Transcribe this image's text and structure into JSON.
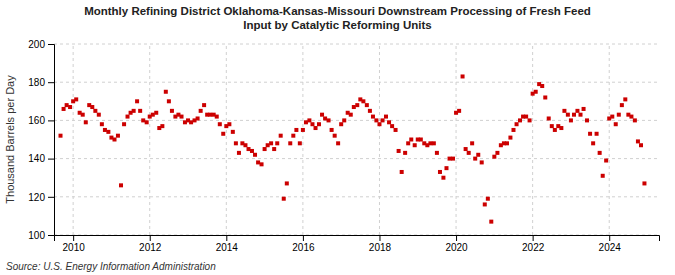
{
  "chart_data": {
    "type": "scatter",
    "title": "Monthly Refining District Oklahoma-Kansas-Missouri Downstream Processing of Fresh Feed\nInput by Catalytic Reforming Units",
    "ylabel": "Thousand Barrels per Day",
    "source": "Source: U.S. Energy Information Administration",
    "xlim": [
      2009.5,
      2025.3
    ],
    "xticks": [
      2010,
      2012,
      2014,
      2016,
      2018,
      2020,
      2022,
      2024
    ],
    "ylim": [
      100,
      200
    ],
    "yticks": [
      100,
      120,
      140,
      160,
      180,
      200
    ],
    "grid": true,
    "color": "#cc0000",
    "marker": "square",
    "x": [
      2009.67,
      2009.75,
      2009.83,
      2009.92,
      2010.0,
      2010.08,
      2010.17,
      2010.25,
      2010.33,
      2010.42,
      2010.5,
      2010.58,
      2010.67,
      2010.75,
      2010.83,
      2010.92,
      2011.0,
      2011.08,
      2011.17,
      2011.25,
      2011.33,
      2011.42,
      2011.5,
      2011.58,
      2011.67,
      2011.75,
      2011.83,
      2011.92,
      2012.0,
      2012.08,
      2012.17,
      2012.25,
      2012.33,
      2012.42,
      2012.5,
      2012.58,
      2012.67,
      2012.75,
      2012.83,
      2012.92,
      2013.0,
      2013.08,
      2013.17,
      2013.25,
      2013.33,
      2013.42,
      2013.5,
      2013.58,
      2013.67,
      2013.75,
      2013.83,
      2013.92,
      2014.0,
      2014.08,
      2014.17,
      2014.25,
      2014.33,
      2014.42,
      2014.5,
      2014.58,
      2014.67,
      2014.75,
      2014.83,
      2014.92,
      2015.0,
      2015.08,
      2015.17,
      2015.25,
      2015.33,
      2015.42,
      2015.5,
      2015.58,
      2015.67,
      2015.75,
      2015.83,
      2015.92,
      2016.0,
      2016.08,
      2016.17,
      2016.25,
      2016.33,
      2016.42,
      2016.5,
      2016.58,
      2016.67,
      2016.75,
      2016.83,
      2016.92,
      2017.0,
      2017.08,
      2017.17,
      2017.25,
      2017.33,
      2017.42,
      2017.5,
      2017.58,
      2017.67,
      2017.75,
      2017.83,
      2017.92,
      2018.0,
      2018.08,
      2018.17,
      2018.25,
      2018.33,
      2018.42,
      2018.5,
      2018.58,
      2018.67,
      2018.75,
      2018.83,
      2018.92,
      2019.0,
      2019.08,
      2019.17,
      2019.25,
      2019.33,
      2019.42,
      2019.5,
      2019.58,
      2019.67,
      2019.75,
      2019.83,
      2019.92,
      2020.0,
      2020.08,
      2020.17,
      2020.25,
      2020.33,
      2020.42,
      2020.5,
      2020.58,
      2020.67,
      2020.75,
      2020.83,
      2020.92,
      2021.0,
      2021.08,
      2021.17,
      2021.25,
      2021.33,
      2021.42,
      2021.5,
      2021.58,
      2021.67,
      2021.75,
      2021.83,
      2021.92,
      2022.0,
      2022.08,
      2022.17,
      2022.25,
      2022.33,
      2022.42,
      2022.5,
      2022.58,
      2022.67,
      2022.75,
      2022.83,
      2022.92,
      2023.0,
      2023.08,
      2023.17,
      2023.25,
      2023.33,
      2023.42,
      2023.5,
      2023.58,
      2023.67,
      2023.75,
      2023.83,
      2023.92,
      2024.0,
      2024.08,
      2024.17,
      2024.25,
      2024.33,
      2024.42,
      2024.5,
      2024.58,
      2024.67,
      2024.75,
      2024.83,
      2024.92
    ],
    "values": [
      152,
      166,
      168,
      167,
      170,
      171,
      164,
      163,
      159,
      168,
      167,
      165,
      163,
      158,
      155,
      154,
      151,
      150,
      152,
      126,
      158,
      162,
      164,
      165,
      170,
      165,
      160,
      159,
      162,
      163,
      164,
      156,
      157,
      175,
      170,
      165,
      162,
      163,
      162,
      159,
      160,
      159,
      160,
      161,
      165,
      168,
      163,
      163,
      163,
      162,
      158,
      153,
      157,
      158,
      154,
      148,
      143,
      148,
      147,
      145,
      144,
      142,
      138,
      137,
      145,
      147,
      148,
      145,
      148,
      152,
      119,
      127,
      148,
      152,
      155,
      148,
      155,
      159,
      160,
      158,
      156,
      158,
      163,
      161,
      160,
      155,
      152,
      148,
      158,
      160,
      164,
      163,
      167,
      168,
      171,
      170,
      168,
      165,
      162,
      160,
      158,
      160,
      162,
      159,
      157,
      155,
      144,
      133,
      143,
      148,
      150,
      147,
      150,
      150,
      148,
      147,
      148,
      148,
      143,
      133,
      130,
      135,
      140,
      140,
      164,
      165,
      183,
      145,
      143,
      148,
      140,
      142,
      138,
      116,
      119,
      107,
      141,
      143,
      147,
      148,
      148,
      151,
      155,
      158,
      160,
      162,
      162,
      160,
      174,
      175,
      179,
      178,
      172,
      161,
      157,
      155,
      157,
      156,
      165,
      163,
      160,
      163,
      165,
      163,
      166,
      160,
      153,
      148,
      153,
      143,
      131,
      139,
      161,
      162,
      158,
      163,
      168,
      171,
      163,
      162,
      160,
      149,
      147,
      127
    ]
  }
}
